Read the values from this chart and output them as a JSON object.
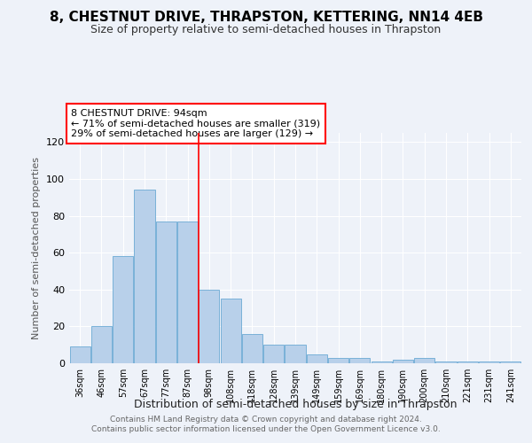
{
  "title": "8, CHESTNUT DRIVE, THRAPSTON, KETTERING, NN14 4EB",
  "subtitle": "Size of property relative to semi-detached houses in Thrapston",
  "xlabel": "Distribution of semi-detached houses by size in Thrapston",
  "ylabel": "Number of semi-detached properties",
  "categories": [
    "36sqm",
    "46sqm",
    "57sqm",
    "67sqm",
    "77sqm",
    "87sqm",
    "98sqm",
    "108sqm",
    "118sqm",
    "128sqm",
    "139sqm",
    "149sqm",
    "159sqm",
    "169sqm",
    "180sqm",
    "190sqm",
    "200sqm",
    "210sqm",
    "221sqm",
    "231sqm",
    "241sqm"
  ],
  "values": [
    9,
    20,
    58,
    94,
    77,
    77,
    40,
    35,
    16,
    10,
    10,
    5,
    3,
    3,
    1,
    2,
    3,
    1,
    1,
    1,
    1
  ],
  "bar_color": "#b8d0ea",
  "bar_edgecolor": "#6aaad4",
  "red_line_x": 5.5,
  "annotation_text": "8 CHESTNUT DRIVE: 94sqm\n← 71% of semi-detached houses are smaller (319)\n29% of semi-detached houses are larger (129) →",
  "ylim": [
    0,
    125
  ],
  "yticks": [
    0,
    20,
    40,
    60,
    80,
    100,
    120
  ],
  "background_color": "#eef2f9",
  "grid_color": "#ffffff",
  "title_fontsize": 11,
  "subtitle_fontsize": 9,
  "annotation_fontsize": 8,
  "ylabel_fontsize": 8,
  "xlabel_fontsize": 9,
  "footer_line1": "Contains HM Land Registry data © Crown copyright and database right 2024.",
  "footer_line2": "Contains public sector information licensed under the Open Government Licence v3.0."
}
